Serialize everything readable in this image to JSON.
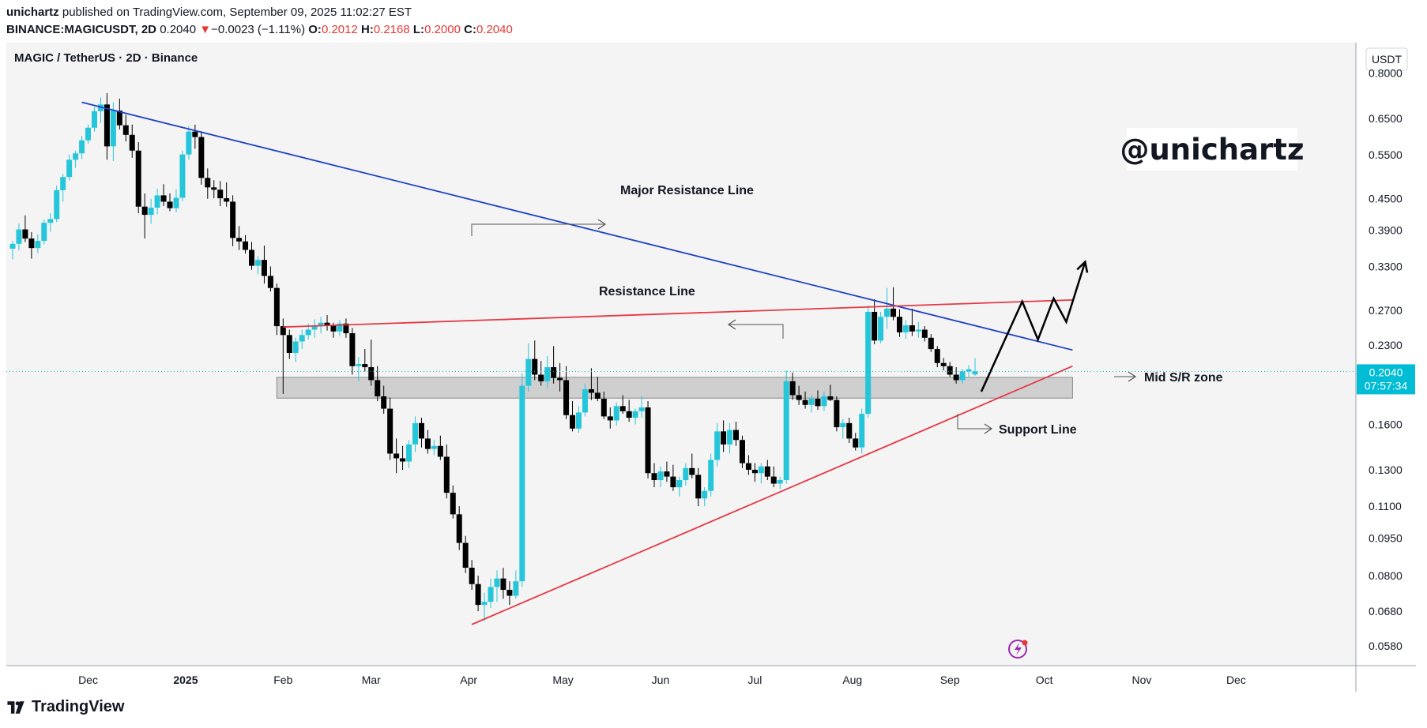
{
  "header": {
    "publisher": "unichartz",
    "published_text": "published on TradingView.com, September 09, 2025 11:02:27 EST",
    "symbol": "BINANCE:MAGICUSDT, 2D",
    "last": "0.2040",
    "change_arrow": "▼",
    "change": "−0.0023 (−1.11%)",
    "o_label": "O:",
    "o_value": "0.2012",
    "h_label": "H:",
    "h_value": "0.2168",
    "l_label": "L:",
    "l_value": "0.2000",
    "c_label": "C:",
    "c_value": "0.2040"
  },
  "footer": {
    "brand": "TradingView"
  },
  "colors": {
    "up": "#26c6da",
    "down": "#000000",
    "major_resistance": "#1e40c8",
    "resistance": "#e53945",
    "support": "#e53945",
    "zone": "#c8c8c8",
    "price_tag": "#00bcd4"
  },
  "chart_data": {
    "type": "candlestick",
    "title": "MAGIC / TetherUS · 2D · Binance",
    "watermark": "@unichartz",
    "currency": "USDT",
    "y_scale": "log",
    "ylim": [
      0.053,
      0.92
    ],
    "y_ticks": [
      "0.8000",
      "0.6500",
      "0.5500",
      "0.4500",
      "0.3900",
      "0.3300",
      "0.2700",
      "0.2300",
      "0.1600",
      "0.1300",
      "0.1100",
      "0.0950",
      "0.0800",
      "0.0680",
      "0.0580"
    ],
    "x_labels": [
      "Dec",
      "2025",
      "Feb",
      "Mar",
      "Apr",
      "May",
      "Jun",
      "Jul",
      "Aug",
      "Sep",
      "Oct",
      "Nov",
      "Dec"
    ],
    "x_label_dates": [
      "2024-12-01",
      "2025-01-01",
      "2025-02-01",
      "2025-03-01",
      "2025-04-01",
      "2025-05-01",
      "2025-06-01",
      "2025-07-01",
      "2025-08-01",
      "2025-09-01",
      "2025-10-01",
      "2025-11-01",
      "2025-12-01"
    ],
    "xlim": [
      "2024-11-07",
      "2025-12-21"
    ],
    "last_price": "0.2040",
    "countdown": "07:57:34",
    "candles": [
      [
        "2024-11-07",
        0.358,
        0.371,
        0.341,
        0.366
      ],
      [
        "2024-11-09",
        0.366,
        0.402,
        0.355,
        0.391
      ],
      [
        "2024-11-11",
        0.391,
        0.417,
        0.369,
        0.375
      ],
      [
        "2024-11-13",
        0.375,
        0.386,
        0.342,
        0.359
      ],
      [
        "2024-11-15",
        0.359,
        0.382,
        0.351,
        0.371
      ],
      [
        "2024-11-17",
        0.371,
        0.409,
        0.365,
        0.403
      ],
      [
        "2024-11-19",
        0.403,
        0.421,
        0.387,
        0.41
      ],
      [
        "2024-11-21",
        0.41,
        0.478,
        0.404,
        0.468
      ],
      [
        "2024-11-23",
        0.468,
        0.504,
        0.444,
        0.497
      ],
      [
        "2024-11-25",
        0.497,
        0.551,
        0.489,
        0.538
      ],
      [
        "2024-11-27",
        0.538,
        0.561,
        0.518,
        0.554
      ],
      [
        "2024-11-29",
        0.554,
        0.6,
        0.54,
        0.588
      ],
      [
        "2024-12-01",
        0.588,
        0.632,
        0.579,
        0.623
      ],
      [
        "2024-12-03",
        0.623,
        0.685,
        0.612,
        0.672
      ],
      [
        "2024-12-05",
        0.672,
        0.716,
        0.637,
        0.693
      ],
      [
        "2024-12-07",
        0.693,
        0.73,
        0.538,
        0.572
      ],
      [
        "2024-12-09",
        0.572,
        0.7,
        0.535,
        0.674
      ],
      [
        "2024-12-11",
        0.674,
        0.712,
        0.618,
        0.63
      ],
      [
        "2024-12-13",
        0.63,
        0.661,
        0.585,
        0.603
      ],
      [
        "2024-12-15",
        0.603,
        0.632,
        0.543,
        0.561
      ],
      [
        "2024-12-17",
        0.561,
        0.583,
        0.421,
        0.434
      ],
      [
        "2024-12-19",
        0.434,
        0.461,
        0.375,
        0.418
      ],
      [
        "2024-12-21",
        0.418,
        0.45,
        0.401,
        0.432
      ],
      [
        "2024-12-23",
        0.432,
        0.471,
        0.419,
        0.457
      ],
      [
        "2024-12-25",
        0.457,
        0.481,
        0.435,
        0.444
      ],
      [
        "2024-12-27",
        0.444,
        0.461,
        0.425,
        0.431
      ],
      [
        "2024-12-29",
        0.431,
        0.47,
        0.423,
        0.452
      ],
      [
        "2024-12-31",
        0.452,
        0.561,
        0.445,
        0.551
      ],
      [
        "2025-01-02",
        0.551,
        0.628,
        0.538,
        0.612
      ],
      [
        "2025-01-04",
        0.612,
        0.632,
        0.566,
        0.597
      ],
      [
        "2025-01-06",
        0.597,
        0.613,
        0.48,
        0.495
      ],
      [
        "2025-01-08",
        0.495,
        0.517,
        0.45,
        0.474
      ],
      [
        "2025-01-10",
        0.474,
        0.49,
        0.451,
        0.469
      ],
      [
        "2025-01-12",
        0.469,
        0.488,
        0.435,
        0.451
      ],
      [
        "2025-01-14",
        0.451,
        0.485,
        0.434,
        0.444
      ],
      [
        "2025-01-16",
        0.444,
        0.457,
        0.362,
        0.376
      ],
      [
        "2025-01-18",
        0.376,
        0.397,
        0.356,
        0.37
      ],
      [
        "2025-01-20",
        0.37,
        0.381,
        0.35,
        0.356
      ],
      [
        "2025-01-22",
        0.356,
        0.369,
        0.325,
        0.331
      ],
      [
        "2025-01-24",
        0.331,
        0.346,
        0.318,
        0.34
      ],
      [
        "2025-01-26",
        0.34,
        0.363,
        0.305,
        0.316
      ],
      [
        "2025-01-28",
        0.316,
        0.33,
        0.294,
        0.299
      ],
      [
        "2025-01-30",
        0.299,
        0.305,
        0.241,
        0.251
      ],
      [
        "2025-02-01",
        0.251,
        0.26,
        0.184,
        0.241
      ],
      [
        "2025-02-03",
        0.241,
        0.247,
        0.216,
        0.222
      ],
      [
        "2025-02-05",
        0.222,
        0.238,
        0.213,
        0.234
      ],
      [
        "2025-02-07",
        0.234,
        0.247,
        0.226,
        0.241
      ],
      [
        "2025-02-09",
        0.241,
        0.254,
        0.236,
        0.247
      ],
      [
        "2025-02-11",
        0.247,
        0.259,
        0.238,
        0.251
      ],
      [
        "2025-02-13",
        0.251,
        0.262,
        0.243,
        0.255
      ],
      [
        "2025-02-15",
        0.255,
        0.264,
        0.246,
        0.252
      ],
      [
        "2025-02-17",
        0.252,
        0.255,
        0.238,
        0.245
      ],
      [
        "2025-02-19",
        0.245,
        0.258,
        0.24,
        0.254
      ],
      [
        "2025-02-21",
        0.254,
        0.26,
        0.238,
        0.243
      ],
      [
        "2025-02-23",
        0.243,
        0.249,
        0.201,
        0.209
      ],
      [
        "2025-02-25",
        0.209,
        0.218,
        0.195,
        0.211
      ],
      [
        "2025-02-27",
        0.211,
        0.226,
        0.204,
        0.208
      ],
      [
        "2025-03-01",
        0.208,
        0.236,
        0.191,
        0.196
      ],
      [
        "2025-03-03",
        0.196,
        0.209,
        0.178,
        0.182
      ],
      [
        "2025-03-05",
        0.182,
        0.191,
        0.168,
        0.172
      ],
      [
        "2025-03-07",
        0.172,
        0.181,
        0.136,
        0.14
      ],
      [
        "2025-03-09",
        0.14,
        0.15,
        0.128,
        0.137
      ],
      [
        "2025-03-11",
        0.137,
        0.145,
        0.13,
        0.135
      ],
      [
        "2025-03-13",
        0.135,
        0.149,
        0.131,
        0.146
      ],
      [
        "2025-03-15",
        0.146,
        0.166,
        0.141,
        0.161
      ],
      [
        "2025-03-17",
        0.161,
        0.165,
        0.144,
        0.15
      ],
      [
        "2025-03-19",
        0.15,
        0.156,
        0.14,
        0.143
      ],
      [
        "2025-03-21",
        0.143,
        0.149,
        0.139,
        0.145
      ],
      [
        "2025-03-23",
        0.145,
        0.152,
        0.136,
        0.138
      ],
      [
        "2025-03-25",
        0.138,
        0.146,
        0.114,
        0.117
      ],
      [
        "2025-03-27",
        0.117,
        0.121,
        0.104,
        0.106
      ],
      [
        "2025-03-29",
        0.106,
        0.11,
        0.09,
        0.093
      ],
      [
        "2025-03-31",
        0.093,
        0.096,
        0.081,
        0.083
      ],
      [
        "2025-04-02",
        0.083,
        0.086,
        0.075,
        0.077
      ],
      [
        "2025-04-04",
        0.077,
        0.08,
        0.068,
        0.07
      ],
      [
        "2025-04-06",
        0.07,
        0.074,
        0.065,
        0.071
      ],
      [
        "2025-04-08",
        0.071,
        0.079,
        0.069,
        0.076
      ],
      [
        "2025-04-10",
        0.076,
        0.082,
        0.071,
        0.079
      ],
      [
        "2025-04-12",
        0.079,
        0.083,
        0.072,
        0.075
      ],
      [
        "2025-04-14",
        0.075,
        0.078,
        0.07,
        0.073
      ],
      [
        "2025-04-16",
        0.073,
        0.082,
        0.072,
        0.078
      ],
      [
        "2025-04-18",
        0.078,
        0.202,
        0.076,
        0.191
      ],
      [
        "2025-04-20",
        0.191,
        0.232,
        0.186,
        0.216
      ],
      [
        "2025-04-22",
        0.216,
        0.235,
        0.196,
        0.201
      ],
      [
        "2025-04-24",
        0.201,
        0.214,
        0.191,
        0.195
      ],
      [
        "2025-04-26",
        0.195,
        0.219,
        0.189,
        0.208
      ],
      [
        "2025-04-28",
        0.208,
        0.229,
        0.193,
        0.198
      ],
      [
        "2025-04-30",
        0.198,
        0.212,
        0.186,
        0.196
      ],
      [
        "2025-05-02",
        0.196,
        0.209,
        0.164,
        0.167
      ],
      [
        "2025-05-04",
        0.167,
        0.178,
        0.155,
        0.157
      ],
      [
        "2025-05-06",
        0.157,
        0.174,
        0.154,
        0.169
      ],
      [
        "2025-05-08",
        0.169,
        0.193,
        0.166,
        0.188
      ],
      [
        "2025-05-10",
        0.188,
        0.207,
        0.179,
        0.185
      ],
      [
        "2025-05-12",
        0.185,
        0.199,
        0.178,
        0.18
      ],
      [
        "2025-05-14",
        0.18,
        0.186,
        0.164,
        0.166
      ],
      [
        "2025-05-16",
        0.166,
        0.173,
        0.157,
        0.163
      ],
      [
        "2025-05-18",
        0.163,
        0.177,
        0.159,
        0.174
      ],
      [
        "2025-05-20",
        0.174,
        0.183,
        0.168,
        0.17
      ],
      [
        "2025-05-22",
        0.17,
        0.179,
        0.162,
        0.165
      ],
      [
        "2025-05-24",
        0.165,
        0.172,
        0.16,
        0.17
      ],
      [
        "2025-05-26",
        0.17,
        0.182,
        0.165,
        0.173
      ],
      [
        "2025-05-28",
        0.173,
        0.178,
        0.125,
        0.128
      ],
      [
        "2025-05-30",
        0.128,
        0.134,
        0.12,
        0.124
      ],
      [
        "2025-06-01",
        0.124,
        0.132,
        0.12,
        0.129
      ],
      [
        "2025-06-03",
        0.129,
        0.135,
        0.123,
        0.126
      ],
      [
        "2025-06-05",
        0.126,
        0.133,
        0.118,
        0.12
      ],
      [
        "2025-06-07",
        0.12,
        0.126,
        0.115,
        0.124
      ],
      [
        "2025-06-09",
        0.124,
        0.134,
        0.121,
        0.131
      ],
      [
        "2025-06-11",
        0.131,
        0.14,
        0.125,
        0.127
      ],
      [
        "2025-06-13",
        0.127,
        0.131,
        0.11,
        0.114
      ],
      [
        "2025-06-15",
        0.114,
        0.12,
        0.11,
        0.118
      ],
      [
        "2025-06-17",
        0.118,
        0.14,
        0.115,
        0.136
      ],
      [
        "2025-06-19",
        0.136,
        0.161,
        0.132,
        0.155
      ],
      [
        "2025-06-21",
        0.155,
        0.163,
        0.141,
        0.146
      ],
      [
        "2025-06-23",
        0.146,
        0.161,
        0.14,
        0.156
      ],
      [
        "2025-06-25",
        0.156,
        0.162,
        0.145,
        0.149
      ],
      [
        "2025-06-27",
        0.149,
        0.152,
        0.131,
        0.134
      ],
      [
        "2025-06-29",
        0.134,
        0.139,
        0.127,
        0.13
      ],
      [
        "2025-07-01",
        0.13,
        0.134,
        0.123,
        0.128
      ],
      [
        "2025-07-03",
        0.128,
        0.134,
        0.122,
        0.132
      ],
      [
        "2025-07-05",
        0.132,
        0.136,
        0.124,
        0.126
      ],
      [
        "2025-07-07",
        0.126,
        0.132,
        0.12,
        0.122
      ],
      [
        "2025-07-09",
        0.122,
        0.126,
        0.119,
        0.124
      ],
      [
        "2025-07-11",
        0.124,
        0.205,
        0.122,
        0.195
      ],
      [
        "2025-07-13",
        0.195,
        0.203,
        0.179,
        0.183
      ],
      [
        "2025-07-15",
        0.183,
        0.191,
        0.175,
        0.179
      ],
      [
        "2025-07-17",
        0.179,
        0.186,
        0.172,
        0.175
      ],
      [
        "2025-07-19",
        0.175,
        0.183,
        0.169,
        0.18
      ],
      [
        "2025-07-21",
        0.18,
        0.187,
        0.171,
        0.174
      ],
      [
        "2025-07-23",
        0.174,
        0.186,
        0.17,
        0.182
      ],
      [
        "2025-07-25",
        0.182,
        0.192,
        0.178,
        0.179
      ],
      [
        "2025-07-27",
        0.179,
        0.182,
        0.155,
        0.158
      ],
      [
        "2025-07-29",
        0.158,
        0.164,
        0.15,
        0.161
      ],
      [
        "2025-07-31",
        0.161,
        0.165,
        0.147,
        0.15
      ],
      [
        "2025-08-02",
        0.15,
        0.154,
        0.142,
        0.144
      ],
      [
        "2025-08-04",
        0.144,
        0.172,
        0.14,
        0.168
      ],
      [
        "2025-08-06",
        0.168,
        0.276,
        0.165,
        0.268
      ],
      [
        "2025-08-08",
        0.268,
        0.284,
        0.231,
        0.235
      ],
      [
        "2025-08-10",
        0.235,
        0.268,
        0.232,
        0.262
      ],
      [
        "2025-08-12",
        0.262,
        0.299,
        0.248,
        0.272
      ],
      [
        "2025-08-14",
        0.272,
        0.3,
        0.258,
        0.262
      ],
      [
        "2025-08-16",
        0.262,
        0.271,
        0.239,
        0.244
      ],
      [
        "2025-08-18",
        0.244,
        0.258,
        0.237,
        0.252
      ],
      [
        "2025-08-20",
        0.252,
        0.272,
        0.24,
        0.245
      ],
      [
        "2025-08-22",
        0.245,
        0.256,
        0.238,
        0.247
      ],
      [
        "2025-08-24",
        0.247,
        0.251,
        0.234,
        0.238
      ],
      [
        "2025-08-26",
        0.238,
        0.242,
        0.223,
        0.226
      ],
      [
        "2025-08-28",
        0.226,
        0.229,
        0.208,
        0.212
      ],
      [
        "2025-08-30",
        0.212,
        0.217,
        0.205,
        0.209
      ],
      [
        "2025-09-01",
        0.209,
        0.213,
        0.199,
        0.201
      ],
      [
        "2025-09-03",
        0.201,
        0.208,
        0.193,
        0.196
      ],
      [
        "2025-09-05",
        0.196,
        0.206,
        0.193,
        0.204
      ],
      [
        "2025-09-07",
        0.204,
        0.21,
        0.199,
        0.206
      ],
      [
        "2025-09-09",
        0.2012,
        0.2168,
        0.2,
        0.204
      ]
    ],
    "annotations": {
      "major_resistance": {
        "label": "Major Resistance Line",
        "points": [
          [
            "2024-11-29",
            0.7
          ],
          [
            "2025-10-10",
            0.225
          ]
        ]
      },
      "resistance": {
        "label": "Resistance Line",
        "points": [
          [
            "2025-02-01",
            0.25
          ],
          [
            "2025-10-10",
            0.283
          ]
        ]
      },
      "support": {
        "label": "Support Line",
        "points": [
          [
            "2025-04-02",
            0.064
          ],
          [
            "2025-10-10",
            0.209
          ]
        ]
      },
      "mid_zone": {
        "label": "Mid S/R zone",
        "date_range": [
          "2025-01-30",
          "2025-10-10"
        ],
        "price_range": [
          0.1805,
          0.1985
        ]
      },
      "projection": [
        [
          "2025-09-11",
          0.186
        ],
        [
          "2025-09-24",
          0.281
        ],
        [
          "2025-09-29",
          0.236
        ],
        [
          "2025-10-04",
          0.285
        ],
        [
          "2025-10-08",
          0.256
        ],
        [
          "2025-10-14",
          0.337
        ]
      ]
    }
  }
}
